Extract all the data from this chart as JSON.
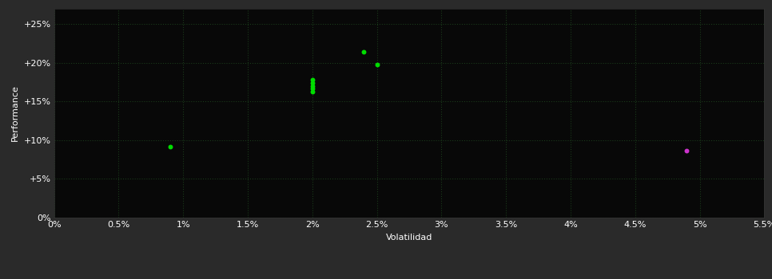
{
  "background_color": "#2a2a2a",
  "plot_bg_color": "#080808",
  "grid_color": "#1a3a1a",
  "axis_label_color": "#ffffff",
  "tick_label_color": "#ffffff",
  "xlabel": "Volatilidad",
  "ylabel": "Performance",
  "xlim": [
    0,
    0.055
  ],
  "ylim": [
    0,
    0.27
  ],
  "xticks": [
    0,
    0.005,
    0.01,
    0.015,
    0.02,
    0.025,
    0.03,
    0.035,
    0.04,
    0.045,
    0.05,
    0.055
  ],
  "yticks": [
    0,
    0.05,
    0.1,
    0.15,
    0.2,
    0.25
  ],
  "green_points": [
    [
      0.009,
      0.092
    ],
    [
      0.02,
      0.178
    ],
    [
      0.02,
      0.174
    ],
    [
      0.02,
      0.17
    ],
    [
      0.02,
      0.167
    ],
    [
      0.02,
      0.163
    ],
    [
      0.024,
      0.214
    ],
    [
      0.025,
      0.197
    ]
  ],
  "magenta_points": [
    [
      0.049,
      0.086
    ]
  ],
  "green_color": "#00dd00",
  "magenta_color": "#cc33cc",
  "marker_size": 18
}
